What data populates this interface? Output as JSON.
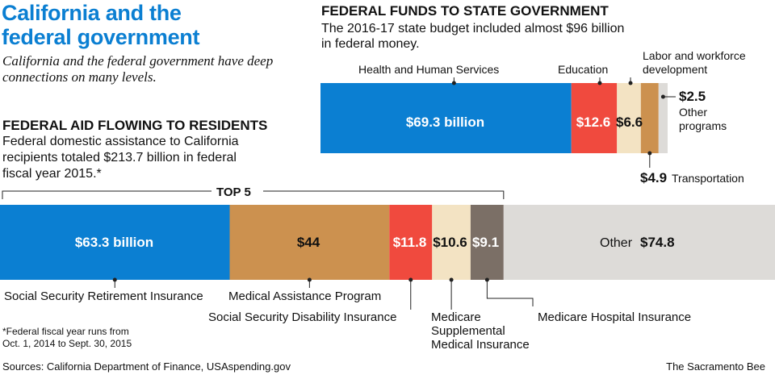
{
  "title_line1": "California and the",
  "title_line2": "federal government",
  "intro": "California and the federal government have deep connections on many levels.",
  "footnote_line1": "*Federal fiscal year runs from",
  "footnote_line2": "Oct. 1, 2014 to Sept. 30, 2015",
  "source": "Sources: California Department of Finance, USAspending.gov",
  "credit": "The Sacramento Bee",
  "colors": {
    "title_blue": "#0b7fd2",
    "blue": "#0b7fd2",
    "red": "#f04a3e",
    "tan": "#cc914f",
    "cream": "#f3e3c3",
    "taupe": "#7b6f66",
    "light_gray": "#dddbd8"
  },
  "chart_data": [
    {
      "type": "bar",
      "orientation": "horizontal-stacked",
      "title": "FEDERAL FUNDS TO STATE GOVERNMENT",
      "subtitle_line1": "The 2016-17 state budget included almost $96 billion",
      "subtitle_line2": "in federal money.",
      "unit": "billion dollars",
      "total": 96,
      "segments": [
        {
          "name": "Health and Human Services",
          "value": 69.3,
          "value_label": "$69.3 billion",
          "color": "#0b7fd2"
        },
        {
          "name": "Education",
          "value": 12.6,
          "value_label": "$12.6",
          "color": "#f04a3e"
        },
        {
          "name": "Labor and workforce development",
          "name_line1": "Labor and workforce",
          "name_line2": "development",
          "value": 6.6,
          "value_label": "$6.6",
          "color": "#f3e3c3"
        },
        {
          "name": "Transportation",
          "value": 4.9,
          "value_label": "$4.9",
          "color": "#cc914f"
        },
        {
          "name": "Other programs",
          "name_line1": "Other",
          "name_line2": "programs",
          "value": 2.5,
          "value_label": "$2.5",
          "color": "#dddbd8"
        }
      ]
    },
    {
      "type": "bar",
      "orientation": "horizontal-stacked",
      "title": "FEDERAL AID FLOWING TO RESIDENTS",
      "subtitle_line1": "Federal domestic assistance to California",
      "subtitle_line2": "recipients totaled $213.7 billion in federal",
      "subtitle_line3": "fiscal year 2015.*",
      "unit": "billion dollars",
      "total": 213.7,
      "bracket_label": "TOP 5",
      "bracket_count": 5,
      "segments": [
        {
          "name": "Social Security Retirement Insurance",
          "value": 63.3,
          "value_label": "$63.3 billion",
          "color": "#0b7fd2"
        },
        {
          "name": "Medical Assistance Program",
          "value": 44.0,
          "value_label": "$44",
          "color": "#cc914f"
        },
        {
          "name": "Social Security Disability Insurance",
          "value": 11.8,
          "value_label": "$11.8",
          "color": "#f04a3e"
        },
        {
          "name": "Medicare Supplemental Medical Insurance",
          "name_line1": "Medicare",
          "name_line2": "Supplemental",
          "name_line3": "Medical Insurance",
          "value": 10.6,
          "value_label": "$10.6",
          "color": "#f3e3c3"
        },
        {
          "name": "Medicare Hospital Insurance",
          "value": 9.1,
          "value_label": "$9.1",
          "color": "#7b6f66"
        },
        {
          "name": "Other",
          "value": 74.8,
          "value_label": "$74.8",
          "color": "#dddbd8"
        }
      ]
    }
  ]
}
